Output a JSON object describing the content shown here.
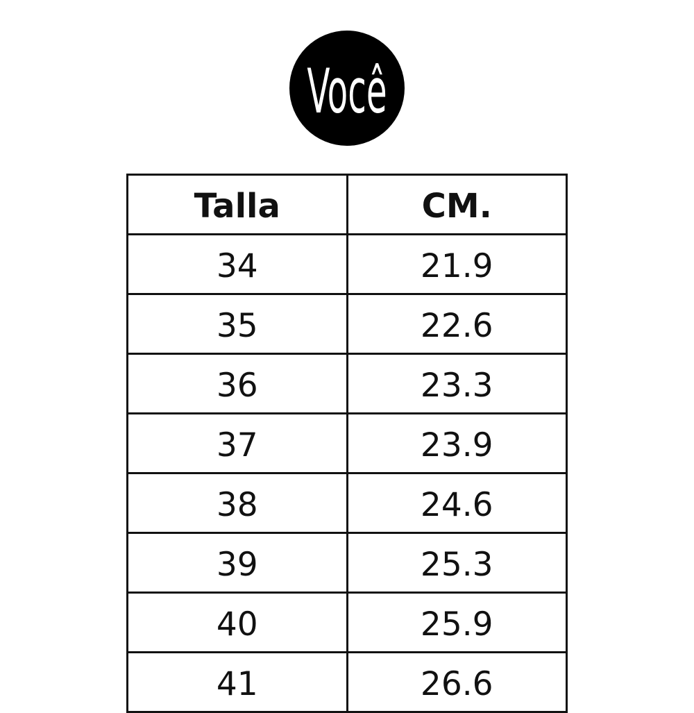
{
  "logo": {
    "text": "Você",
    "background": "#000000",
    "color": "#ffffff"
  },
  "table": {
    "headers": [
      "Talla",
      "CM."
    ],
    "rows": [
      [
        "34",
        "21.9"
      ],
      [
        "35",
        "22.6"
      ],
      [
        "36",
        "23.3"
      ],
      [
        "37",
        "23.9"
      ],
      [
        "38",
        "24.6"
      ],
      [
        "39",
        "25.3"
      ],
      [
        "40",
        "25.9"
      ],
      [
        "41",
        "26.6"
      ]
    ]
  }
}
